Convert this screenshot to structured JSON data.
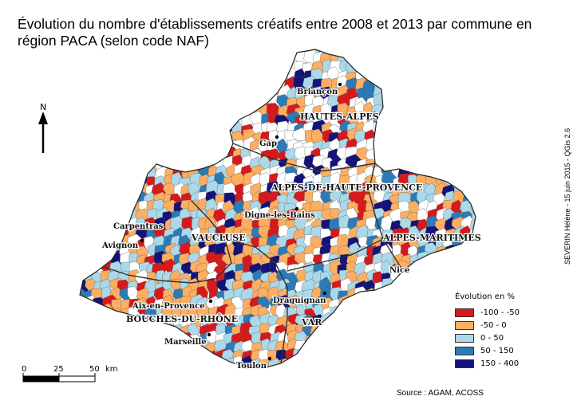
{
  "title": "Évolution du nombre d'établissements créatifs entre 2008 et 2013 par commune en région PACA (selon code NAF)",
  "north": "N",
  "credit": "SEVERIN Hélène - 15 juin 2015 - QGis 2.6",
  "source": "Source : AGAM, ACOSS",
  "scale": {
    "labels": [
      "0",
      "25",
      "50",
      "km"
    ]
  },
  "departments": [
    "HAUTES-ALPES",
    "ALPES-DE-HAUTE-PROVENCE",
    "ALPES-MARITIMES",
    "VAUCLUSE",
    "BOUCHES-DU-RHÔNE",
    "VAR"
  ],
  "cities": [
    "Briançon",
    "Gap",
    "Digne-les-Bains",
    "Carpentras",
    "Avignon",
    "Nice",
    "Aix-en-Provence",
    "Draguignan",
    "Marseille",
    "Toulon"
  ],
  "legend": {
    "title": "Évolution en %",
    "classes": [
      {
        "label": "-100 - -50",
        "color": "#d7191c"
      },
      {
        "label": "-50 - 0",
        "color": "#fdae61"
      },
      {
        "label": "0 - 50",
        "color": "#abd9e9"
      },
      {
        "label": "50 - 150",
        "color": "#2c7bb6"
      },
      {
        "label": "150 - 400",
        "color": "#13137a"
      }
    ]
  }
}
